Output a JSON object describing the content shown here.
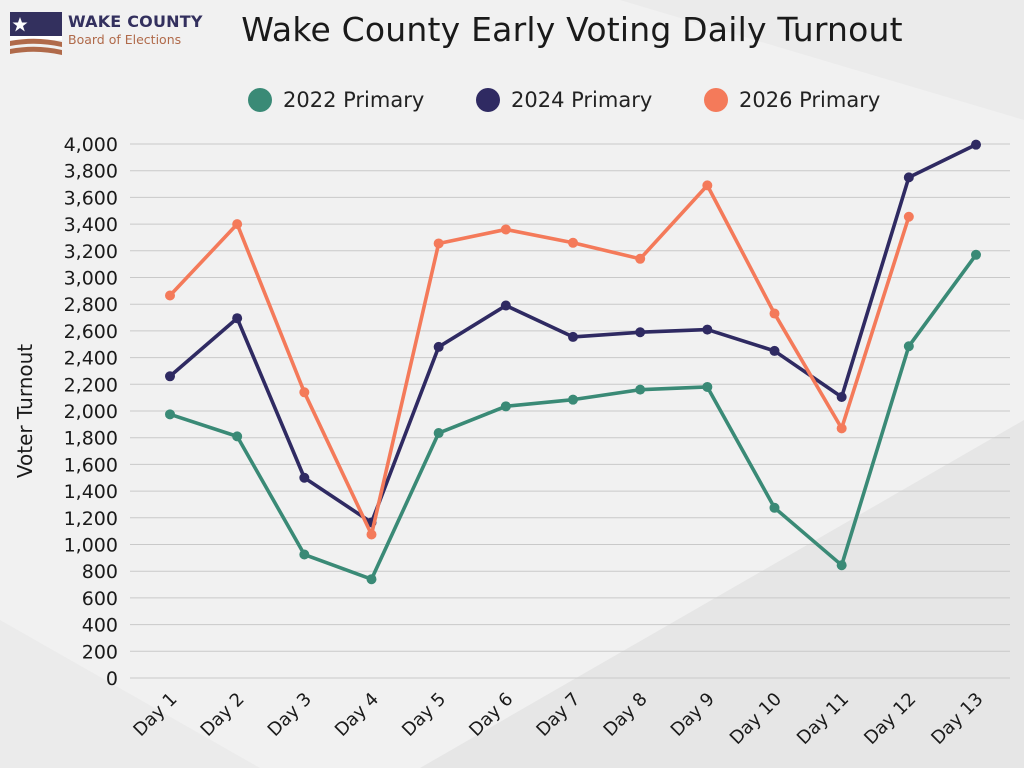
{
  "header": {
    "logo_line1": "WAKE COUNTY",
    "logo_line2": "Board of Elections"
  },
  "colors": {
    "background": "#f1f1f1",
    "grid": "#c9c9c9",
    "flag_navy": "#33305e",
    "flag_stripe": "#b06a4a"
  },
  "chart_data": {
    "type": "line",
    "title": "Wake County Early Voting Daily Turnout",
    "xlabel": "",
    "ylabel": "Voter Turnout",
    "ylim": [
      0,
      4000
    ],
    "yticks": [
      0,
      200,
      400,
      600,
      800,
      1000,
      1200,
      1400,
      1600,
      1800,
      2000,
      2200,
      2400,
      2600,
      2800,
      3000,
      3200,
      3400,
      3600,
      3800,
      4000
    ],
    "ytick_labels": [
      "0",
      "200",
      "400",
      "600",
      "800",
      "1,000",
      "1,200",
      "1,400",
      "1,600",
      "1,800",
      "2,000",
      "2,200",
      "2,400",
      "2,600",
      "2,800",
      "3,000",
      "3,200",
      "3,400",
      "3,600",
      "3,800",
      "4,000"
    ],
    "grid": true,
    "legend_position": "top",
    "categories": [
      "Day 1",
      "Day 2",
      "Day 3",
      "Day 4",
      "Day 5",
      "Day 6",
      "Day 7",
      "Day 8",
      "Day 9",
      "Day 10",
      "Day 11",
      "Day 12",
      "Day 13"
    ],
    "series": [
      {
        "name": "2022 Primary",
        "color": "#3a8a76",
        "values": [
          1975,
          1810,
          925,
          740,
          1835,
          2035,
          2085,
          2160,
          2180,
          1275,
          845,
          2485,
          3170
        ]
      },
      {
        "name": "2024 Primary",
        "color": "#2f2a62",
        "values": [
          2260,
          2695,
          1500,
          1165,
          2480,
          2790,
          2555,
          2590,
          2610,
          2450,
          2105,
          3750,
          3995
        ]
      },
      {
        "name": "2026 Primary",
        "color": "#f47a5a",
        "values": [
          2865,
          3400,
          2140,
          1075,
          3255,
          3360,
          3260,
          3140,
          3690,
          2730,
          1870,
          3455,
          null
        ]
      }
    ]
  }
}
